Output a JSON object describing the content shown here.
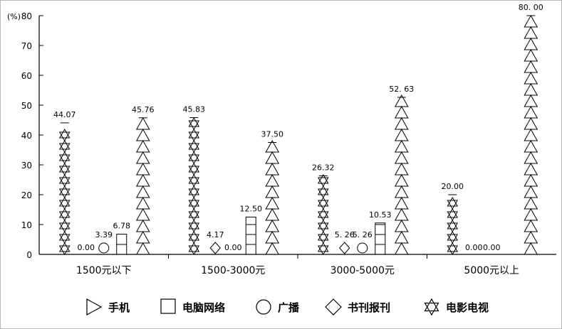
{
  "chart_data": {
    "type": "bar",
    "unit_label": "(%)",
    "ylim": [
      0,
      80
    ],
    "yticks": [
      "0",
      "10",
      "20",
      "30",
      "40",
      "50",
      "60",
      "70",
      "80"
    ],
    "categories": [
      "1500元以下",
      "1500-3000元",
      "3000-5000元",
      "5000元以上"
    ],
    "series": [
      {
        "name": "电影电视",
        "symbol": "star-icon",
        "values": [
          44.07,
          45.83,
          26.32,
          20.0
        ],
        "labels": [
          "44.07",
          "45.83",
          "26.32",
          "20.00"
        ]
      },
      {
        "name": "书刊报刊",
        "symbol": "diamond-icon",
        "values": [
          0.0,
          4.17,
          5.26,
          0.0
        ],
        "labels": [
          "0.00",
          "4.17",
          "5. 26",
          "0.00"
        ]
      },
      {
        "name": "广播",
        "symbol": "circle-icon",
        "values": [
          3.39,
          0.0,
          5.26,
          0.0
        ],
        "labels": [
          "3.39",
          "0.00",
          "5. 26",
          "0.00"
        ]
      },
      {
        "name": "电脑网络",
        "symbol": "square-icon",
        "values": [
          6.78,
          12.5,
          10.53,
          0.0
        ],
        "labels": [
          "6.78",
          "12.50",
          "10.53",
          ""
        ]
      },
      {
        "name": "手机",
        "symbol": "triangle-icon",
        "values": [
          45.76,
          37.5,
          52.63,
          80.0
        ],
        "labels": [
          "45.76",
          "37.50",
          "52. 63",
          "80. 00"
        ]
      }
    ],
    "legend_order": [
      "手机",
      "电脑网络",
      "广播",
      "书刊报刊",
      "电影电视"
    ],
    "legend_position": "bottom",
    "grid": false
  }
}
